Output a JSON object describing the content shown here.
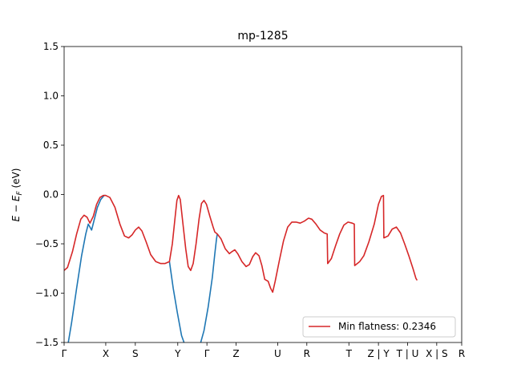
{
  "chart_data": {
    "type": "line",
    "title": "mp-1285",
    "xlabel": "",
    "ylabel": "E − E_F (eV)",
    "ylim": [
      -1.5,
      1.5
    ],
    "xlim": [
      0,
      9.55
    ],
    "grid": false,
    "legend_position": "lower-right",
    "y_ticks": [
      -1.5,
      -1.0,
      -0.5,
      0.0,
      0.5,
      1.0,
      1.5
    ],
    "y_tick_labels": [
      "−1.5",
      "−1.0",
      "−0.5",
      "0.0",
      "0.5",
      "1.0",
      "1.5"
    ],
    "x_ticks": [
      {
        "pos": 0.0,
        "label": "Γ"
      },
      {
        "pos": 1.0,
        "label": "X"
      },
      {
        "pos": 1.71,
        "label": "S"
      },
      {
        "pos": 2.73,
        "label": "Y"
      },
      {
        "pos": 3.43,
        "label": "Γ"
      },
      {
        "pos": 4.13,
        "label": "Z"
      },
      {
        "pos": 5.13,
        "label": "U"
      },
      {
        "pos": 5.83,
        "label": "R"
      },
      {
        "pos": 6.84,
        "label": "T"
      },
      {
        "pos": 7.55,
        "label": "Z | Y"
      },
      {
        "pos": 8.25,
        "label": "T | U"
      },
      {
        "pos": 8.95,
        "label": "X | S"
      },
      {
        "pos": 9.55,
        "label": "R"
      }
    ],
    "series": [
      {
        "name": "Min flatness: 0.2346",
        "color": "#d62728",
        "points": [
          [
            0.0,
            -0.77
          ],
          [
            0.08,
            -0.74
          ],
          [
            0.2,
            -0.58
          ],
          [
            0.3,
            -0.4
          ],
          [
            0.4,
            -0.25
          ],
          [
            0.48,
            -0.21
          ],
          [
            0.55,
            -0.23
          ],
          [
            0.62,
            -0.29
          ],
          [
            0.7,
            -0.22
          ],
          [
            0.78,
            -0.1
          ],
          [
            0.86,
            -0.03
          ],
          [
            0.94,
            -0.01
          ],
          [
            1.0,
            -0.01
          ],
          [
            1.1,
            -0.03
          ],
          [
            1.22,
            -0.13
          ],
          [
            1.34,
            -0.3
          ],
          [
            1.45,
            -0.42
          ],
          [
            1.55,
            -0.44
          ],
          [
            1.63,
            -0.41
          ],
          [
            1.71,
            -0.36
          ],
          [
            1.79,
            -0.33
          ],
          [
            1.87,
            -0.37
          ],
          [
            1.97,
            -0.48
          ],
          [
            2.08,
            -0.61
          ],
          [
            2.2,
            -0.68
          ],
          [
            2.32,
            -0.7
          ],
          [
            2.42,
            -0.7
          ],
          [
            2.53,
            -0.68
          ],
          [
            2.6,
            -0.5
          ],
          [
            2.66,
            -0.25
          ],
          [
            2.71,
            -0.06
          ],
          [
            2.75,
            -0.01
          ],
          [
            2.79,
            -0.05
          ],
          [
            2.85,
            -0.28
          ],
          [
            2.92,
            -0.55
          ],
          [
            2.98,
            -0.73
          ],
          [
            3.04,
            -0.77
          ],
          [
            3.1,
            -0.7
          ],
          [
            3.17,
            -0.5
          ],
          [
            3.24,
            -0.25
          ],
          [
            3.3,
            -0.09
          ],
          [
            3.36,
            -0.06
          ],
          [
            3.42,
            -0.1
          ],
          [
            3.5,
            -0.22
          ],
          [
            3.58,
            -0.33
          ],
          [
            3.62,
            -0.38
          ],
          [
            3.68,
            -0.4
          ],
          [
            3.77,
            -0.45
          ],
          [
            3.87,
            -0.55
          ],
          [
            3.97,
            -0.6
          ],
          [
            4.03,
            -0.58
          ],
          [
            4.1,
            -0.56
          ],
          [
            4.17,
            -0.6
          ],
          [
            4.27,
            -0.68
          ],
          [
            4.37,
            -0.73
          ],
          [
            4.45,
            -0.71
          ],
          [
            4.53,
            -0.63
          ],
          [
            4.6,
            -0.59
          ],
          [
            4.68,
            -0.62
          ],
          [
            4.75,
            -0.72
          ],
          [
            4.82,
            -0.86
          ],
          [
            4.9,
            -0.88
          ],
          [
            4.96,
            -0.95
          ],
          [
            5.01,
            -0.99
          ],
          [
            5.07,
            -0.88
          ],
          [
            5.17,
            -0.67
          ],
          [
            5.27,
            -0.47
          ],
          [
            5.37,
            -0.33
          ],
          [
            5.47,
            -0.28
          ],
          [
            5.57,
            -0.28
          ],
          [
            5.67,
            -0.29
          ],
          [
            5.77,
            -0.27
          ],
          [
            5.87,
            -0.24
          ],
          [
            5.95,
            -0.25
          ],
          [
            6.05,
            -0.3
          ],
          [
            6.15,
            -0.36
          ],
          [
            6.25,
            -0.39
          ],
          [
            6.32,
            -0.4
          ],
          [
            6.33,
            -0.7
          ],
          [
            6.42,
            -0.65
          ],
          [
            6.52,
            -0.52
          ],
          [
            6.62,
            -0.4
          ],
          [
            6.72,
            -0.31
          ],
          [
            6.82,
            -0.28
          ],
          [
            6.92,
            -0.29
          ],
          [
            6.97,
            -0.3
          ],
          [
            6.98,
            -0.72
          ],
          [
            7.1,
            -0.68
          ],
          [
            7.2,
            -0.62
          ],
          [
            7.32,
            -0.48
          ],
          [
            7.45,
            -0.3
          ],
          [
            7.55,
            -0.1
          ],
          [
            7.62,
            -0.02
          ],
          [
            7.67,
            -0.01
          ],
          [
            7.68,
            -0.44
          ],
          [
            7.78,
            -0.42
          ],
          [
            7.88,
            -0.35
          ],
          [
            7.98,
            -0.33
          ],
          [
            8.08,
            -0.39
          ],
          [
            8.18,
            -0.5
          ],
          [
            8.28,
            -0.62
          ],
          [
            8.38,
            -0.75
          ],
          [
            8.45,
            -0.85
          ],
          [
            8.48,
            -0.87
          ]
        ]
      },
      {
        "name": "",
        "color": "#1f77b4",
        "points": [
          [
            0.1,
            -1.5
          ],
          [
            0.18,
            -1.3
          ],
          [
            0.3,
            -0.95
          ],
          [
            0.42,
            -0.62
          ],
          [
            0.52,
            -0.4
          ],
          [
            0.58,
            -0.3
          ],
          [
            0.62,
            -0.33
          ],
          [
            0.66,
            -0.36
          ],
          [
            0.72,
            -0.26
          ],
          [
            0.8,
            -0.13
          ],
          [
            0.88,
            -0.05
          ],
          [
            0.96,
            -0.01
          ],
          [
            1.0,
            -0.01
          ]
        ]
      },
      {
        "name": "",
        "color": "#1f77b4",
        "points": [
          [
            2.53,
            -0.68
          ],
          [
            2.62,
            -0.95
          ],
          [
            2.72,
            -1.2
          ],
          [
            2.82,
            -1.43
          ],
          [
            2.88,
            -1.5
          ]
        ]
      },
      {
        "name": "",
        "color": "#1f77b4",
        "points": [
          [
            3.28,
            -1.5
          ],
          [
            3.36,
            -1.38
          ],
          [
            3.46,
            -1.14
          ],
          [
            3.56,
            -0.84
          ],
          [
            3.62,
            -0.6
          ],
          [
            3.66,
            -0.45
          ],
          [
            3.68,
            -0.4
          ]
        ]
      }
    ]
  }
}
